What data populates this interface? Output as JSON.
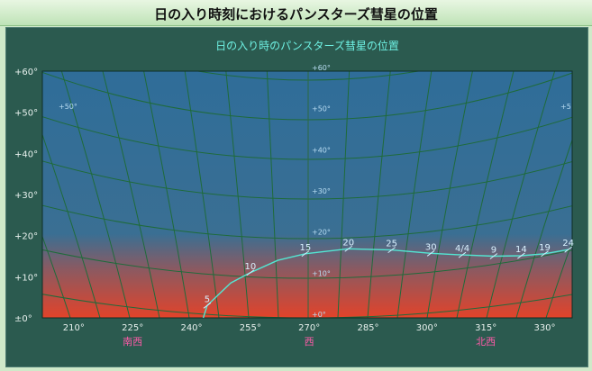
{
  "window": {
    "title": "日の入り時刻におけるパンスターズ彗星の位置"
  },
  "colors": {
    "sky_top": "#2f6d99",
    "sky_horizon": "#e2432a",
    "grid": "#1f6b3a",
    "track": "#53e6d3",
    "panel": "#2b5a4f"
  },
  "chart_data": {
    "type": "line",
    "title": "日の入り時のパンスターズ彗星の位置",
    "xlabel": "",
    "ylabel": "",
    "xlim": [
      202,
      337
    ],
    "ylim": [
      0,
      60
    ],
    "x_ticks": [
      "210°",
      "225°",
      "240°",
      "255°",
      "270°",
      "285°",
      "300°",
      "315°",
      "330°"
    ],
    "x_tick_values": [
      210,
      225,
      240,
      255,
      270,
      285,
      300,
      315,
      330
    ],
    "y_ticks": [
      "±0°",
      "+10°",
      "+20°",
      "+30°",
      "+40°",
      "+50°",
      "+60°"
    ],
    "y_tick_values": [
      0,
      10,
      20,
      30,
      40,
      50,
      60
    ],
    "directions": [
      {
        "label": "南西",
        "az": 225
      },
      {
        "label": "西",
        "az": 270
      },
      {
        "label": "北西",
        "az": 315
      }
    ],
    "altitude_labels": [
      "+60°",
      "+50°",
      "+40°",
      "+30°",
      "+20°",
      "+10°",
      "+0°"
    ],
    "altitude_label_values": [
      60,
      50,
      40,
      30,
      20,
      10,
      0
    ],
    "side_labels": [
      "+50°",
      "+5"
    ],
    "series": [
      {
        "points": [
          {
            "az": 243.0,
            "alt": 0.0,
            "label": ""
          },
          {
            "az": 244.0,
            "alt": 3.0,
            "label": "5"
          },
          {
            "az": 250.0,
            "alt": 8.5,
            "label": ""
          },
          {
            "az": 255.0,
            "alt": 11.0,
            "label": "10"
          },
          {
            "az": 262.0,
            "alt": 14.0,
            "label": ""
          },
          {
            "az": 269.0,
            "alt": 15.6,
            "label": "15"
          },
          {
            "az": 280.0,
            "alt": 16.8,
            "label": "20"
          },
          {
            "az": 291.0,
            "alt": 16.5,
            "label": "25"
          },
          {
            "az": 301.0,
            "alt": 15.7,
            "label": "30"
          },
          {
            "az": 309.0,
            "alt": 15.3,
            "label": "4/4"
          },
          {
            "az": 317.0,
            "alt": 15.0,
            "label": "9"
          },
          {
            "az": 324.0,
            "alt": 15.1,
            "label": "14"
          },
          {
            "az": 330.0,
            "alt": 15.6,
            "label": "19"
          },
          {
            "az": 336.0,
            "alt": 16.6,
            "label": "24"
          }
        ]
      }
    ],
    "grid": true
  }
}
